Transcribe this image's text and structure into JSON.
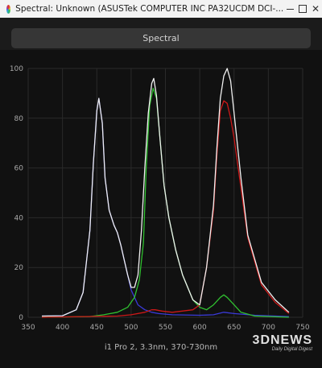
{
  "window": {
    "title": "Spectral: Unknown (ASUSTek COMPUTER INC PA32UCDM DCI-...",
    "controls": [
      "minimize",
      "maximize",
      "close"
    ]
  },
  "tab": {
    "label": "Spectral"
  },
  "footer": {
    "label": "i1 Pro 2, 3.3nm, 370-730nm"
  },
  "watermark": {
    "main": "3DNEWS",
    "sub": "Daily Digital Digest"
  },
  "chart_data": {
    "type": "line",
    "xlim": [
      350,
      750
    ],
    "ylim": [
      0,
      100
    ],
    "x_ticks": [
      350,
      400,
      450,
      500,
      550,
      600,
      650,
      700,
      750
    ],
    "y_ticks": [
      0,
      20,
      40,
      60,
      80,
      100
    ],
    "grid": true,
    "series": [
      {
        "color": "#f0f0f0",
        "x": [
          370,
          400,
          420,
          430,
          440,
          445,
          450,
          453,
          458,
          462,
          468,
          475,
          480,
          485,
          490,
          495,
          500,
          505,
          510,
          515,
          520,
          525,
          530,
          533,
          537,
          542,
          548,
          555,
          565,
          575,
          590,
          600,
          610,
          620,
          625,
          630,
          635,
          640,
          645,
          650,
          660,
          670,
          690,
          710,
          730
        ],
        "y": [
          0.5,
          0.6,
          3,
          10,
          35,
          62,
          83,
          88,
          78,
          56,
          43,
          37,
          34,
          29,
          23,
          17,
          12,
          12,
          17,
          35,
          60,
          82,
          94,
          96,
          89,
          72,
          53,
          40,
          27,
          17,
          7,
          5,
          20,
          45,
          68,
          88,
          97,
          100,
          95,
          82,
          56,
          33,
          14,
          7,
          2
        ]
      },
      {
        "color": "#3a3ad8",
        "x": [
          370,
          400,
          420,
          430,
          440,
          445,
          450,
          453,
          458,
          462,
          468,
          475,
          480,
          485,
          490,
          495,
          500,
          505,
          510,
          520,
          530,
          540,
          560,
          600,
          620,
          635,
          650,
          680,
          730
        ],
        "y": [
          0.5,
          0.6,
          3,
          10,
          35,
          62,
          83,
          88,
          78,
          56,
          43,
          37,
          34,
          29,
          23,
          17,
          11,
          8,
          5,
          3,
          2,
          1.5,
          1,
          0.8,
          1,
          2,
          1.5,
          0.8,
          0.3
        ]
      },
      {
        "color": "#30c030",
        "x": [
          370,
          440,
          460,
          480,
          495,
          505,
          512,
          518,
          522,
          527,
          532,
          537,
          542,
          548,
          555,
          565,
          575,
          590,
          600,
          610,
          620,
          630,
          635,
          640,
          650,
          660,
          680,
          730
        ],
        "y": [
          0,
          0.3,
          1,
          2,
          4,
          8,
          15,
          30,
          60,
          85,
          92,
          88,
          72,
          53,
          40,
          27,
          17,
          7,
          4,
          3,
          5,
          8,
          9,
          8,
          5,
          2,
          0.5,
          0
        ]
      },
      {
        "color": "#cc1818",
        "x": [
          370,
          480,
          500,
          520,
          530,
          535,
          545,
          560,
          590,
          600,
          610,
          620,
          625,
          630,
          635,
          640,
          645,
          650,
          660,
          670,
          690,
          710,
          730
        ],
        "y": [
          0,
          0.5,
          1,
          2,
          3,
          3,
          2.5,
          2,
          3,
          5,
          20,
          43,
          65,
          83,
          87,
          86,
          80,
          72,
          52,
          32,
          13,
          6,
          1.5
        ]
      }
    ]
  }
}
